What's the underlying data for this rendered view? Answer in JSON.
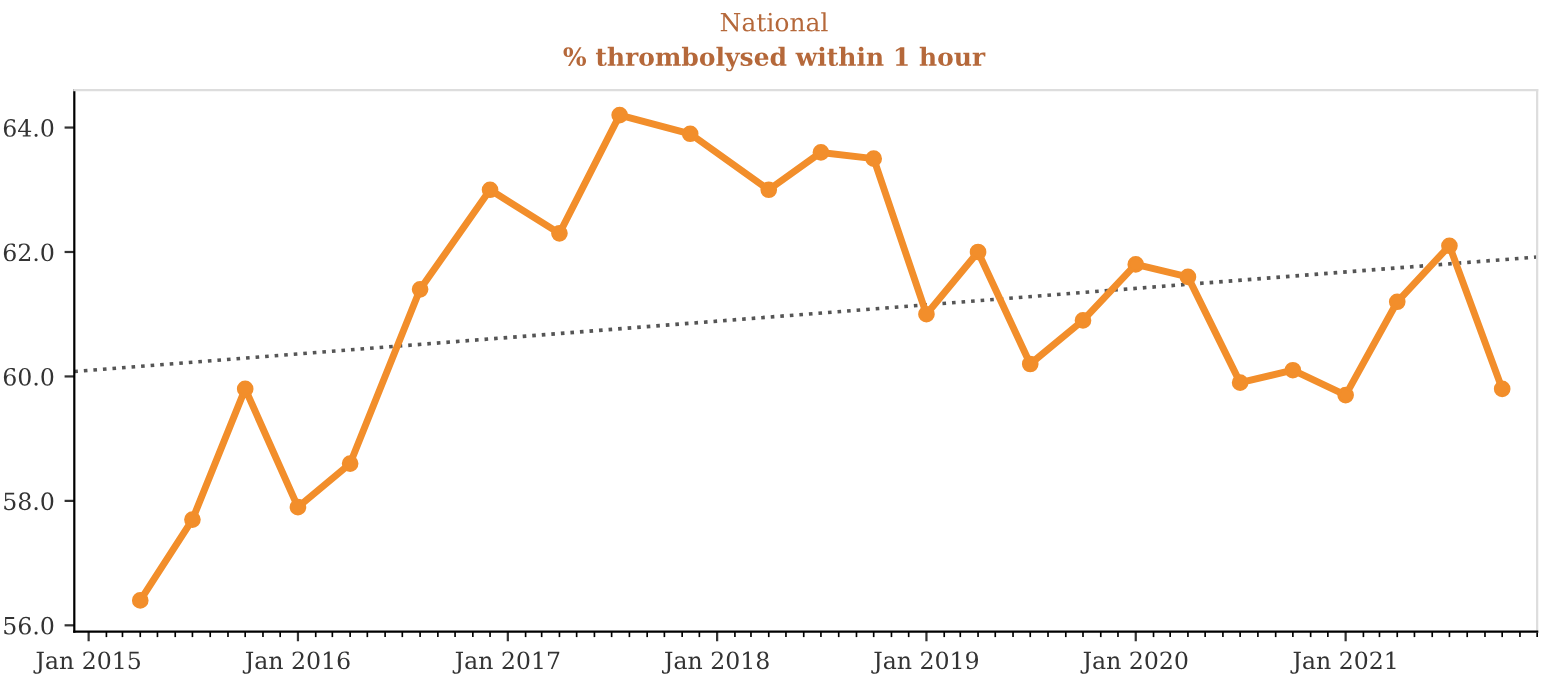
{
  "chart_data": {
    "type": "line",
    "title": "National",
    "subtitle": "% thrombolysed within 1 hour",
    "x": [
      "2015-04-01",
      "2015-07-01",
      "2015-10-01",
      "2016-01-01",
      "2016-04-01",
      "2016-08-01",
      "2016-12-01",
      "2017-04-01",
      "2017-07-15",
      "2017-11-15",
      "2018-04-01",
      "2018-07-01",
      "2018-10-01",
      "2019-01-01",
      "2019-04-01",
      "2019-07-01",
      "2019-10-01",
      "2020-01-01",
      "2020-04-01",
      "2020-07-01",
      "2020-10-01",
      "2021-01-01",
      "2021-04-01",
      "2021-07-01",
      "2021-10-01"
    ],
    "series": [
      {
        "color": "#f28e2b",
        "marker": "circle",
        "line_style": "solid",
        "values": [
          56.4,
          57.7,
          59.8,
          57.9,
          58.6,
          61.4,
          63.0,
          62.3,
          64.2,
          63.9,
          63.0,
          63.6,
          63.5,
          61.0,
          62.0,
          60.2,
          60.9,
          61.8,
          61.6,
          59.9,
          60.1,
          59.7,
          61.2,
          62.1,
          59.8
        ]
      },
      {
        "type": "line",
        "color": "#555555",
        "marker": "none",
        "line_style": "dotted",
        "x": [
          "2014-12-07",
          "2021-12-01"
        ],
        "values": [
          60.08,
          61.92
        ]
      }
    ],
    "xlim": [
      "2014-12-07",
      "2021-12-01"
    ],
    "xticks": [
      {
        "value": "2015-01-01",
        "label": "Jan 2015"
      },
      {
        "value": "2016-01-01",
        "label": "Jan 2016"
      },
      {
        "value": "2017-01-01",
        "label": "Jan 2017"
      },
      {
        "value": "2018-01-01",
        "label": "Jan 2018"
      },
      {
        "value": "2019-01-01",
        "label": "Jan 2019"
      },
      {
        "value": "2020-01-01",
        "label": "Jan 2020"
      },
      {
        "value": "2021-01-01",
        "label": "Jan 2021"
      }
    ],
    "ylim": [
      55.9,
      64.6
    ],
    "yticks": [
      {
        "value": 56,
        "label": "56.0"
      },
      {
        "value": 58,
        "label": "58.0"
      },
      {
        "value": 60,
        "label": "60.0"
      },
      {
        "value": 62,
        "label": "62.0"
      },
      {
        "value": 64,
        "label": "64.0"
      }
    ],
    "grid": false,
    "legend": false
  }
}
